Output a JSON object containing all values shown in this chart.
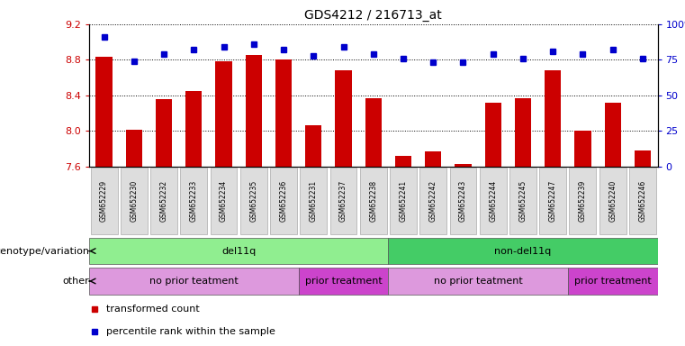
{
  "title": "GDS4212 / 216713_at",
  "samples": [
    "GSM652229",
    "GSM652230",
    "GSM652232",
    "GSM652233",
    "GSM652234",
    "GSM652235",
    "GSM652236",
    "GSM652231",
    "GSM652237",
    "GSM652238",
    "GSM652241",
    "GSM652242",
    "GSM652243",
    "GSM652244",
    "GSM652245",
    "GSM652247",
    "GSM652239",
    "GSM652240",
    "GSM652246"
  ],
  "red_values": [
    8.83,
    8.01,
    8.36,
    8.45,
    8.78,
    8.85,
    8.8,
    8.06,
    8.68,
    8.37,
    7.72,
    7.77,
    7.63,
    8.32,
    8.37,
    8.68,
    8.0,
    8.32,
    7.78
  ],
  "blue_values": [
    91,
    74,
    79,
    82,
    84,
    86,
    82,
    78,
    84,
    79,
    76,
    73,
    73,
    79,
    76,
    81,
    79,
    82,
    76
  ],
  "ylim_left": [
    7.6,
    9.2
  ],
  "ylim_right": [
    0,
    100
  ],
  "yticks_left": [
    7.6,
    8.0,
    8.4,
    8.8,
    9.2
  ],
  "yticks_right": [
    0,
    25,
    50,
    75,
    100
  ],
  "bar_color": "#cc0000",
  "dot_color": "#0000cc",
  "bar_bottom": 7.6,
  "genotype_groups": [
    {
      "label": "del11q",
      "start": 0,
      "end": 10,
      "color": "#90ee90"
    },
    {
      "label": "non-del11q",
      "start": 10,
      "end": 19,
      "color": "#44cc66"
    }
  ],
  "other_groups": [
    {
      "label": "no prior teatment",
      "start": 0,
      "end": 7,
      "color": "#dd99dd"
    },
    {
      "label": "prior treatment",
      "start": 7,
      "end": 10,
      "color": "#cc44cc"
    },
    {
      "label": "no prior teatment",
      "start": 10,
      "end": 16,
      "color": "#dd99dd"
    },
    {
      "label": "prior treatment",
      "start": 16,
      "end": 19,
      "color": "#cc44cc"
    }
  ],
  "legend_items": [
    {
      "label": "transformed count",
      "color": "#cc0000"
    },
    {
      "label": "percentile rank within the sample",
      "color": "#0000cc"
    }
  ],
  "label_left": [
    "genotype/variation",
    "other"
  ],
  "fig_width": 7.61,
  "fig_height": 3.84,
  "dpi": 100
}
